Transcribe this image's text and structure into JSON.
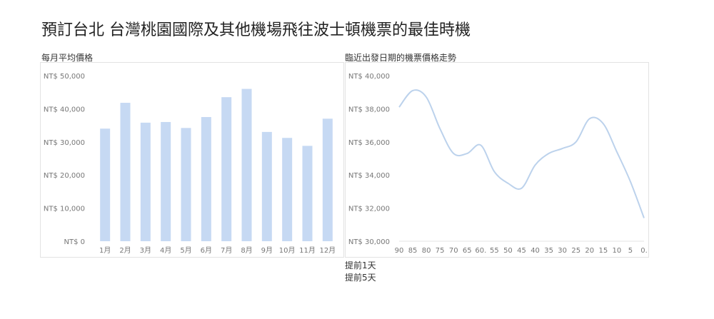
{
  "title": "預訂台北 台灣桃園國際及其他機場飛往波士頓機票的最佳時機",
  "chart_data": [
    {
      "type": "bar",
      "title": "每月平均價格",
      "categories": [
        "1月",
        "2月",
        "3月",
        "4月",
        "5月",
        "6月",
        "7月",
        "8月",
        "9月",
        "10月",
        "11月",
        "12月"
      ],
      "values": [
        34000,
        41800,
        35800,
        36000,
        34200,
        37500,
        43500,
        46000,
        33000,
        31200,
        28800,
        37000
      ],
      "y_ticks": [
        "NT$ 0",
        "NT$ 10,000",
        "NT$ 20,000",
        "NT$ 30,000",
        "NT$ 40,000",
        "NT$ 50,000"
      ],
      "ylim": [
        0,
        50000
      ],
      "color": "#c6d9f3",
      "grid": false
    },
    {
      "type": "line",
      "title": "臨近出發日期的機票價格走勢",
      "x_ticks": [
        "90",
        "85",
        "80",
        "75",
        "70",
        "65",
        "60.",
        "55",
        "50",
        "45",
        "40",
        "35",
        "30",
        "25",
        "20",
        "15",
        "10",
        "5",
        "0."
      ],
      "x": [
        90,
        85,
        80,
        75,
        70,
        65,
        60,
        55,
        50,
        45,
        40,
        35,
        30,
        25,
        20,
        15,
        10,
        5,
        0
      ],
      "values": [
        38100,
        39100,
        38700,
        36800,
        35300,
        35300,
        35800,
        34200,
        33500,
        33200,
        34600,
        35300,
        35600,
        36000,
        37400,
        37100,
        35400,
        33600,
        31400
      ],
      "y_ticks": [
        "NT$ 30,000",
        "NT$ 32,000",
        "NT$ 34,000",
        "NT$ 36,000",
        "NT$ 38,000",
        "NT$ 40,000"
      ],
      "ylim": [
        30000,
        40000
      ],
      "xlim": [
        90,
        0
      ],
      "color": "#bcd2ec",
      "grid": false
    }
  ],
  "footnotes": [
    "提前1天",
    "提前5天"
  ]
}
